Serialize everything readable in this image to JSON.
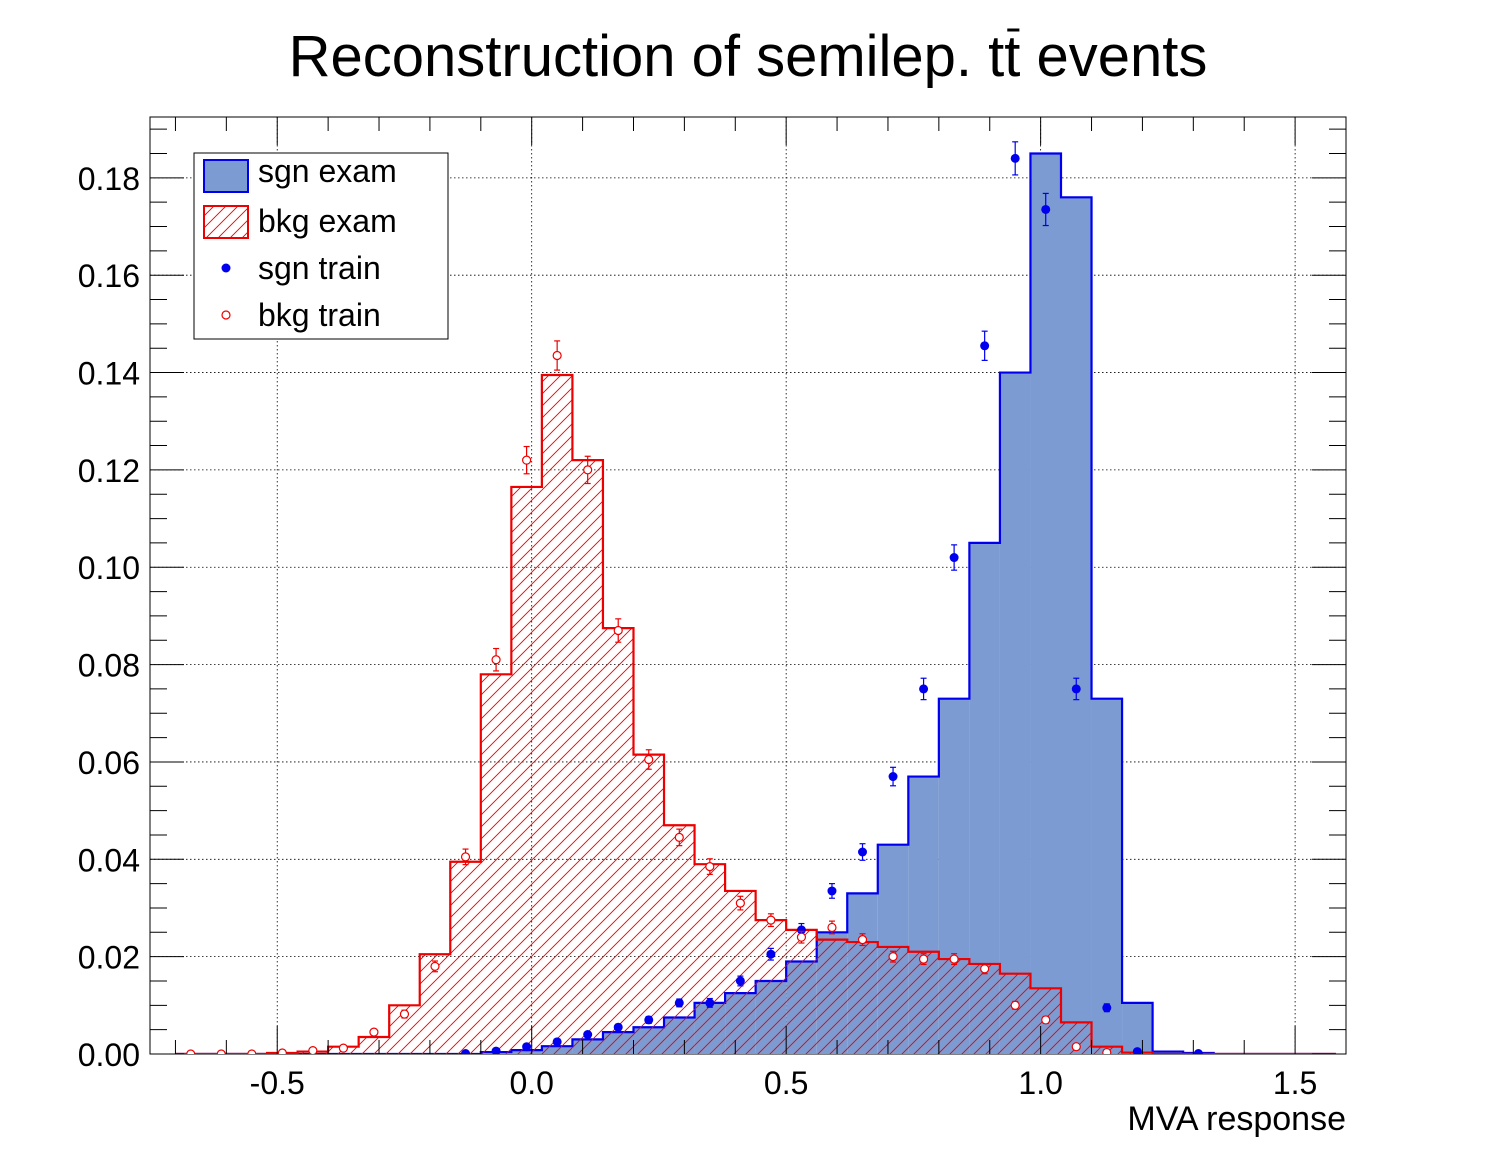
{
  "chart_data": {
    "type": "histogram",
    "title_main": "Reconstruction of semilep. t",
    "title_bar": "t",
    "title_rest": " events",
    "xlabel": "MVA response",
    "ylabel": "",
    "xlim": [
      -0.75,
      1.6
    ],
    "ylim": [
      0,
      0.1925
    ],
    "xticks": [
      -0.5,
      0.0,
      0.5,
      1.0,
      1.5
    ],
    "xtick_labels": [
      "-0.5",
      "0.0",
      "0.5",
      "1.0",
      "1.5"
    ],
    "yticks": [
      0,
      0.02,
      0.04,
      0.06,
      0.08,
      0.1,
      0.12,
      0.14,
      0.16,
      0.18
    ],
    "ytick_labels": [
      "0.00",
      "0.02",
      "0.04",
      "0.06",
      "0.08",
      "0.10",
      "0.12",
      "0.14",
      "0.16",
      "0.18"
    ],
    "grid": true,
    "legend_position": "top-left",
    "bin_edges": [
      -0.7,
      -0.64,
      -0.58,
      -0.52,
      -0.46,
      -0.4,
      -0.34,
      -0.28,
      -0.22,
      -0.16,
      -0.1,
      -0.04,
      0.02,
      0.08,
      0.14,
      0.2,
      0.26,
      0.32,
      0.38,
      0.44,
      0.5,
      0.56,
      0.62,
      0.68,
      0.74,
      0.8,
      0.86,
      0.92,
      0.98,
      1.04,
      1.1,
      1.16,
      1.22,
      1.28,
      1.34,
      1.4,
      1.46,
      1.52,
      1.58
    ],
    "series": [
      {
        "name": "sgn exam",
        "style": "filled",
        "color": "#0000ee",
        "fill": "#7b9bd2",
        "values": [
          0,
          0,
          0,
          0,
          0,
          0,
          0,
          0,
          0,
          0,
          0.0004,
          0.0008,
          0.0016,
          0.003,
          0.0045,
          0.0055,
          0.0075,
          0.0105,
          0.0125,
          0.015,
          0.019,
          0.025,
          0.033,
          0.043,
          0.057,
          0.073,
          0.105,
          0.14,
          0.185,
          0.176,
          0.073,
          0.0105,
          0.0005,
          0.0002,
          0,
          0,
          0,
          0
        ]
      },
      {
        "name": "bkg exam",
        "style": "hatched",
        "color": "#ee0000",
        "values": [
          0,
          0,
          0,
          0.0002,
          0.0005,
          0.0015,
          0.0035,
          0.01,
          0.0205,
          0.0395,
          0.078,
          0.1165,
          0.1395,
          0.122,
          0.0875,
          0.0615,
          0.047,
          0.039,
          0.0335,
          0.0275,
          0.0255,
          0.0235,
          0.023,
          0.022,
          0.021,
          0.0195,
          0.0185,
          0.0165,
          0.0135,
          0.0065,
          0.0015,
          0.0003,
          0,
          0,
          0,
          0,
          0,
          0
        ]
      },
      {
        "name": "sgn train",
        "style": "points-filled",
        "color": "#0000ee",
        "x": [
          -0.13,
          -0.07,
          -0.01,
          0.05,
          0.11,
          0.17,
          0.23,
          0.29,
          0.35,
          0.41,
          0.47,
          0.53,
          0.59,
          0.65,
          0.71,
          0.77,
          0.83,
          0.89,
          0.95,
          1.01,
          1.07,
          1.13,
          1.19,
          1.31
        ],
        "y": [
          0.0001,
          0.0006,
          0.0015,
          0.0025,
          0.004,
          0.0055,
          0.007,
          0.0105,
          0.0105,
          0.015,
          0.0205,
          0.0255,
          0.0335,
          0.0415,
          0.057,
          0.075,
          0.102,
          0.1455,
          0.184,
          0.1735,
          0.075,
          0.0095,
          0.0005,
          0.0001
        ],
        "err": [
          0.0001,
          0.0002,
          0.0003,
          0.0004,
          0.0005,
          0.0006,
          0.0007,
          0.0008,
          0.0009,
          0.001,
          0.0012,
          0.0013,
          0.0015,
          0.0017,
          0.0019,
          0.0022,
          0.0026,
          0.003,
          0.0034,
          0.0033,
          0.0022,
          0.0008,
          0.0002,
          0.0001
        ]
      },
      {
        "name": "bkg train",
        "style": "points-open",
        "color": "#ee0000",
        "x": [
          -0.67,
          -0.61,
          -0.55,
          -0.49,
          -0.43,
          -0.37,
          -0.31,
          -0.25,
          -0.19,
          -0.13,
          -0.07,
          -0.01,
          0.05,
          0.11,
          0.17,
          0.23,
          0.29,
          0.35,
          0.41,
          0.47,
          0.53,
          0.59,
          0.65,
          0.71,
          0.77,
          0.83,
          0.89,
          0.95,
          1.01,
          1.07,
          1.13
        ],
        "y": [
          0,
          0,
          0,
          0.0002,
          0.0007,
          0.0012,
          0.0045,
          0.0082,
          0.018,
          0.0405,
          0.081,
          0.122,
          0.1435,
          0.12,
          0.087,
          0.0605,
          0.0445,
          0.0385,
          0.031,
          0.0275,
          0.024,
          0.026,
          0.0235,
          0.02,
          0.0195,
          0.0195,
          0.0175,
          0.01,
          0.007,
          0.0015,
          0.0003
        ],
        "err": [
          0.0001,
          0.0001,
          0.0001,
          0.0002,
          0.0003,
          0.0004,
          0.0006,
          0.0008,
          0.0011,
          0.0016,
          0.0023,
          0.0028,
          0.003,
          0.0028,
          0.0024,
          0.002,
          0.0017,
          0.0016,
          0.0014,
          0.0013,
          0.0012,
          0.0013,
          0.0012,
          0.0011,
          0.0011,
          0.0011,
          0.001,
          0.0008,
          0.0007,
          0.0003,
          0.0002
        ]
      }
    ]
  }
}
